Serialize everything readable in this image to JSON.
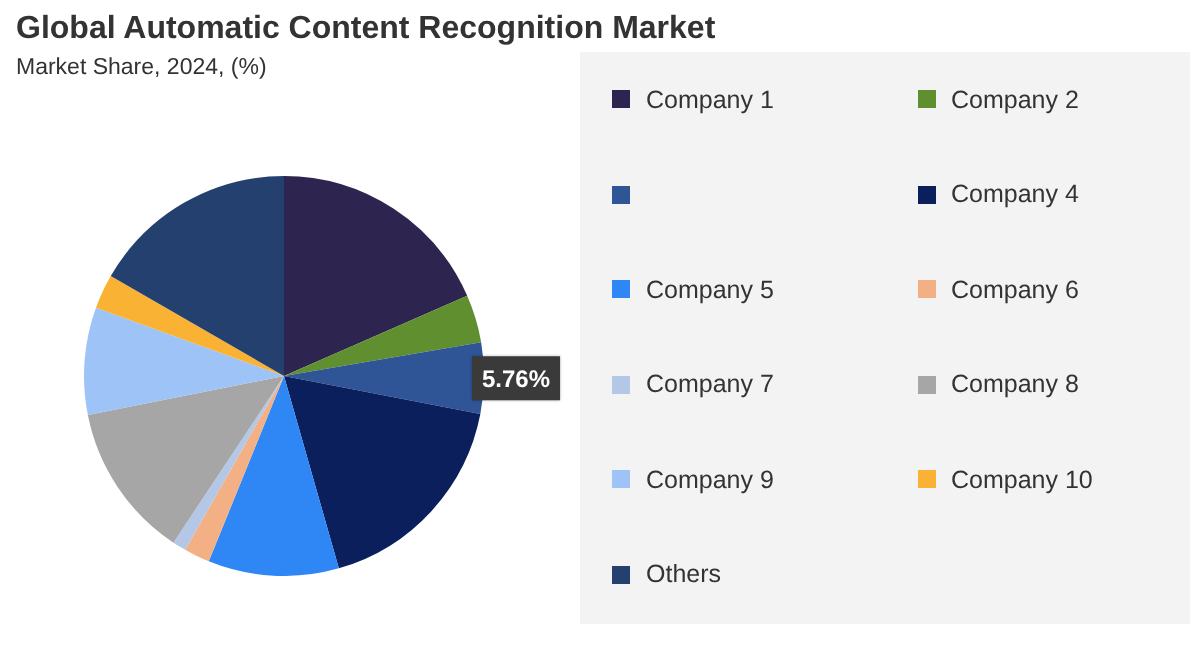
{
  "chart_data": {
    "type": "pie",
    "title": "Global Automatic Content Recognition Market",
    "subtitle": "Market Share, 2024, (%)",
    "categories": [
      "Company 1",
      "Company 2",
      null,
      "Company 4",
      "Company 5",
      "Company 6",
      "Company 7",
      "Company 8",
      "Company 9",
      "Company 10",
      "Others"
    ],
    "values": [
      18.5,
      3.9,
      5.76,
      17.6,
      10.6,
      2.1,
      1.1,
      12.6,
      8.7,
      2.8,
      16.74
    ],
    "colors": [
      "#2e2450",
      "#5f8f2e",
      "#2f5597",
      "#0a1f5c",
      "#2f86f5",
      "#f2b084",
      "#b4c7e7",
      "#a6a6a6",
      "#9dc3f7",
      "#f9b233",
      "#23406f"
    ],
    "value_labels": [
      null,
      null,
      "5.76%",
      null,
      null,
      null,
      null,
      null,
      null,
      null,
      null
    ],
    "legend": "right"
  }
}
